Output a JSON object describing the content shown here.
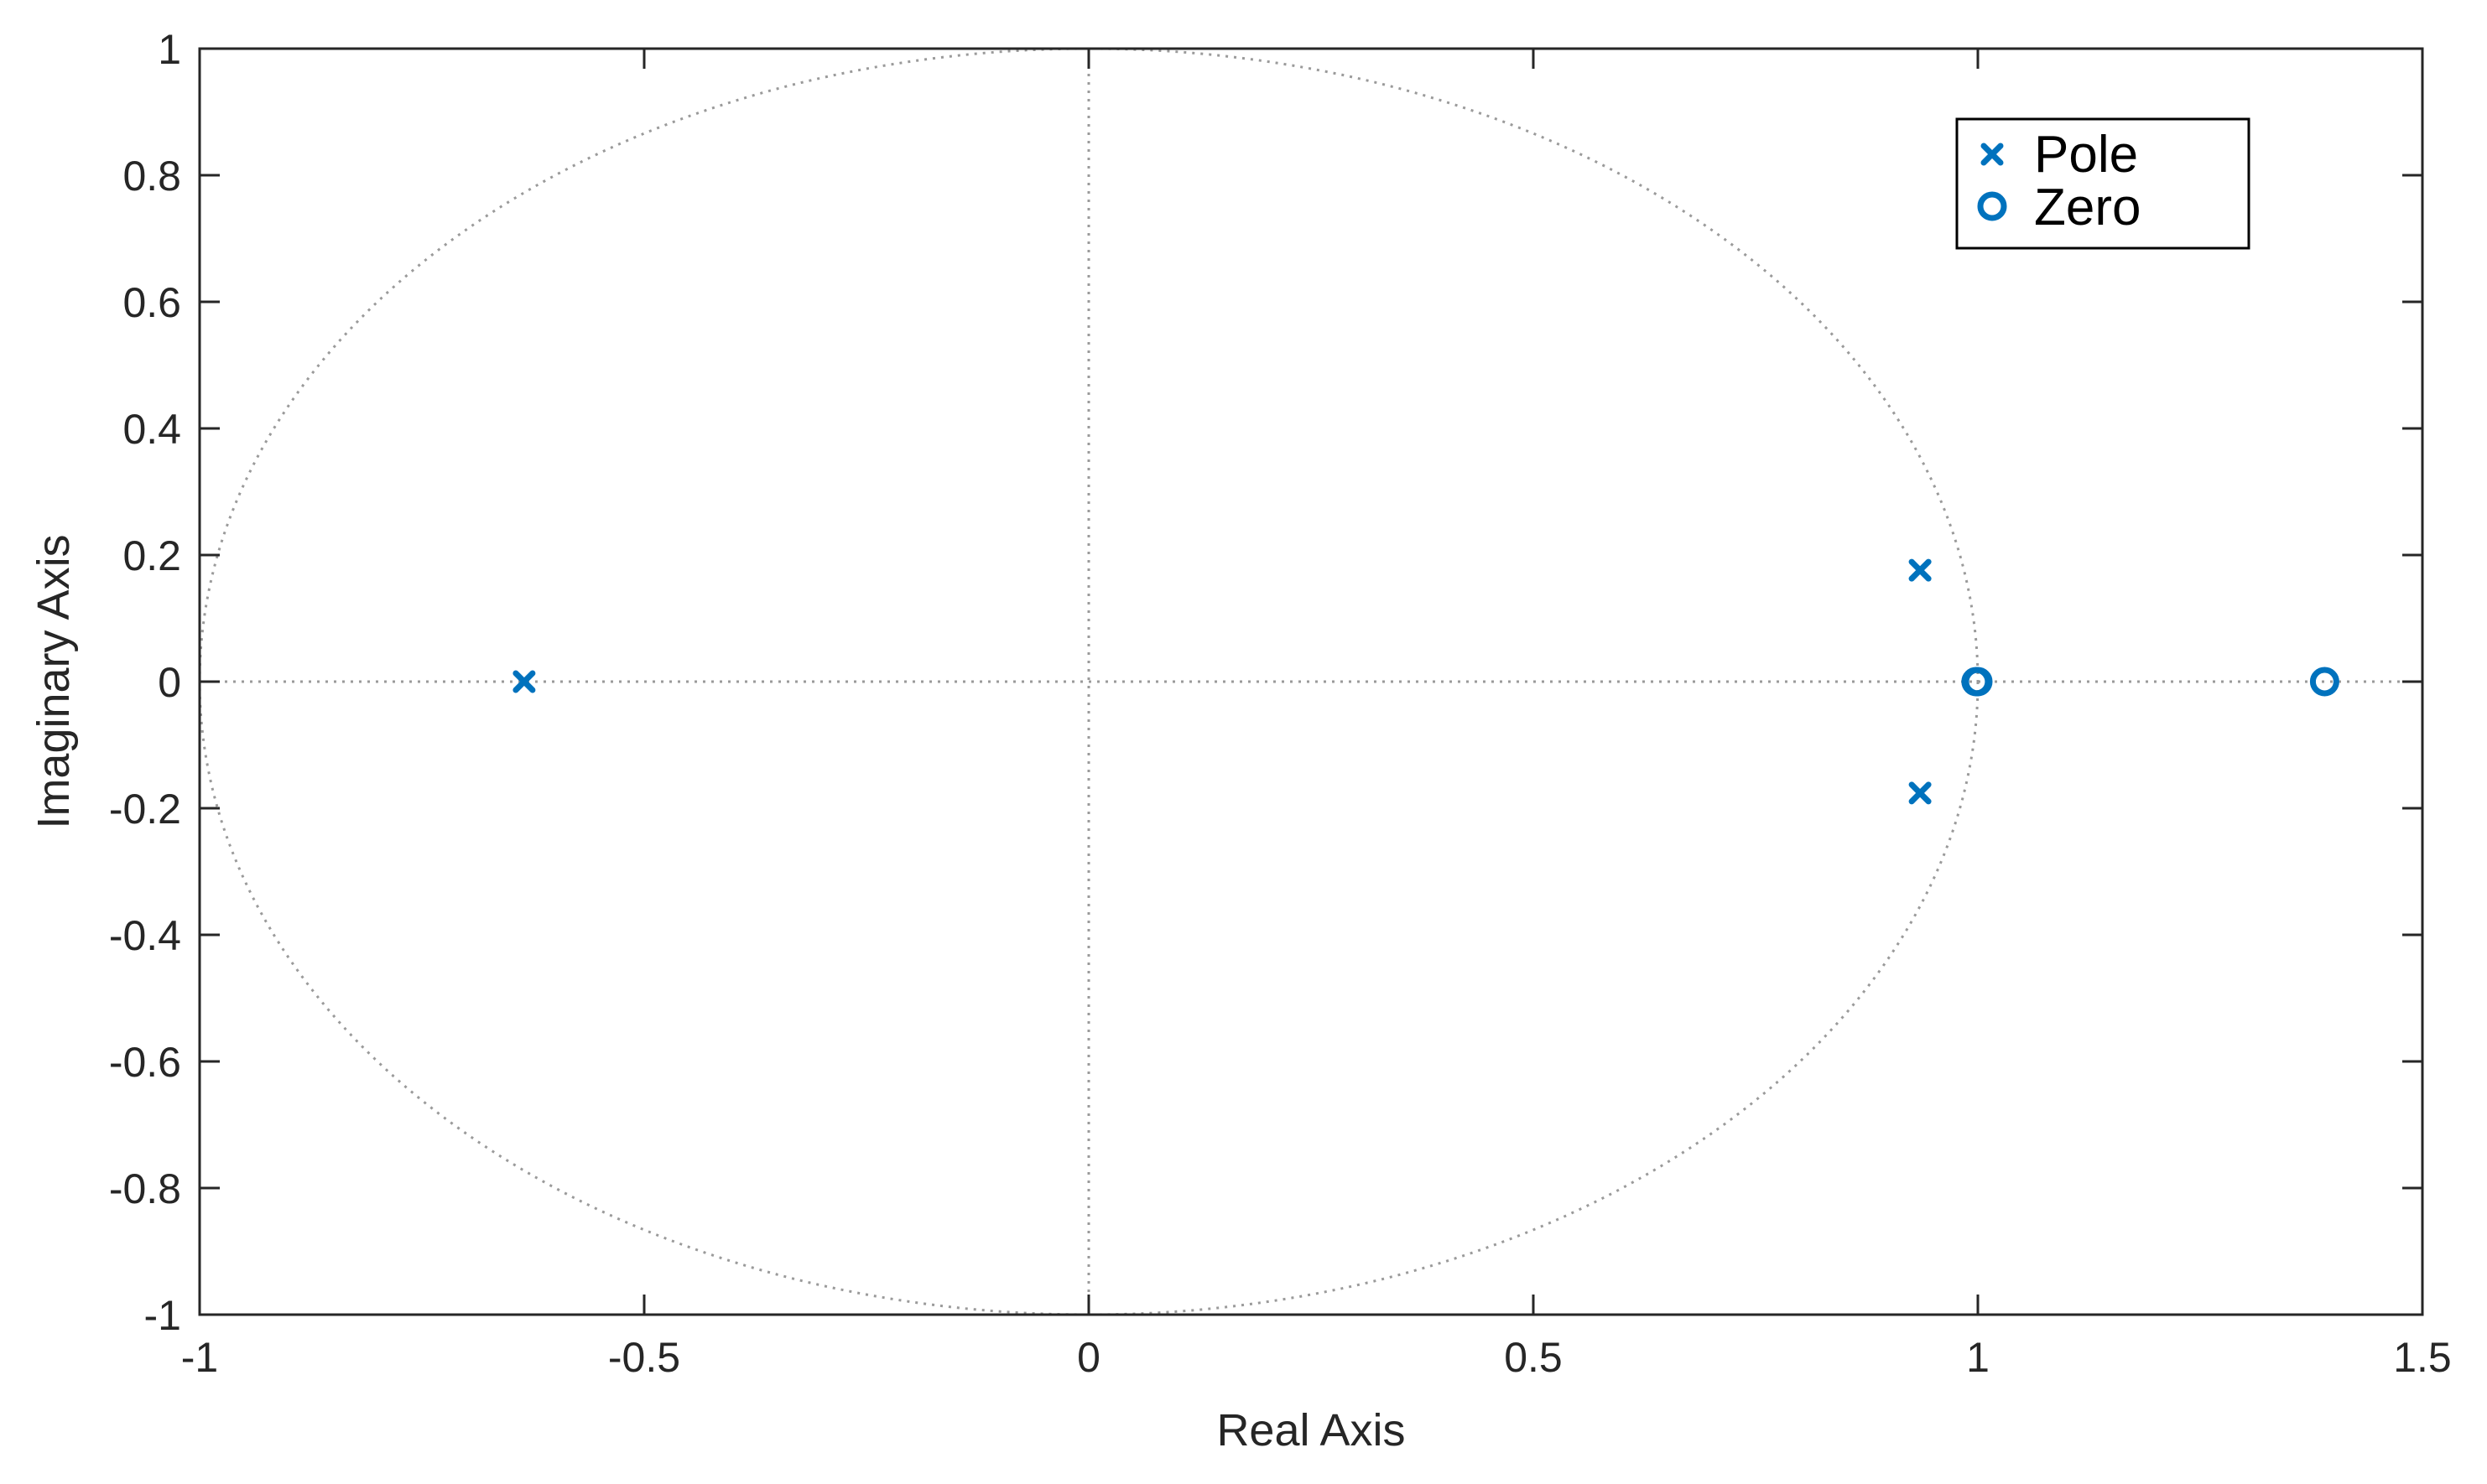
{
  "chart_data": {
    "type": "scatter",
    "title": "",
    "xlabel": "Real Axis",
    "ylabel": "Imaginary Axis",
    "xlim": [
      -1,
      1.5
    ],
    "ylim": [
      -1,
      1
    ],
    "x_ticks": [
      -1,
      -0.5,
      0,
      0.5,
      1,
      1.5
    ],
    "x_tick_labels": [
      "-1",
      "-0.5",
      "0",
      "0.5",
      "1",
      "1.5"
    ],
    "y_ticks": [
      -1,
      -0.8,
      -0.6,
      -0.4,
      -0.2,
      0,
      0.2,
      0.4,
      0.6,
      0.8,
      1
    ],
    "y_tick_labels": [
      "-1",
      "-0.8",
      "-0.6",
      "-0.4",
      "-0.2",
      "0",
      "0.2",
      "0.4",
      "0.6",
      "0.8",
      "1"
    ],
    "grid": false,
    "unit_circle": true,
    "reference_lines": {
      "x": 0,
      "y": 0
    },
    "legend_position": "top-right",
    "marker_color": "#0072BD",
    "reference_color": "#9a9a9a",
    "series": [
      {
        "name": "Pole",
        "marker": "x",
        "points": [
          {
            "x": -0.635,
            "y": 0
          },
          {
            "x": 0.935,
            "y": 0.176
          },
          {
            "x": 0.935,
            "y": -0.176
          }
        ]
      },
      {
        "name": "Zero",
        "marker": "o",
        "points": [
          {
            "x": 0.998,
            "y": 0
          },
          {
            "x": 1.0,
            "y": 0
          },
          {
            "x": 1.39,
            "y": 0
          }
        ]
      }
    ]
  }
}
